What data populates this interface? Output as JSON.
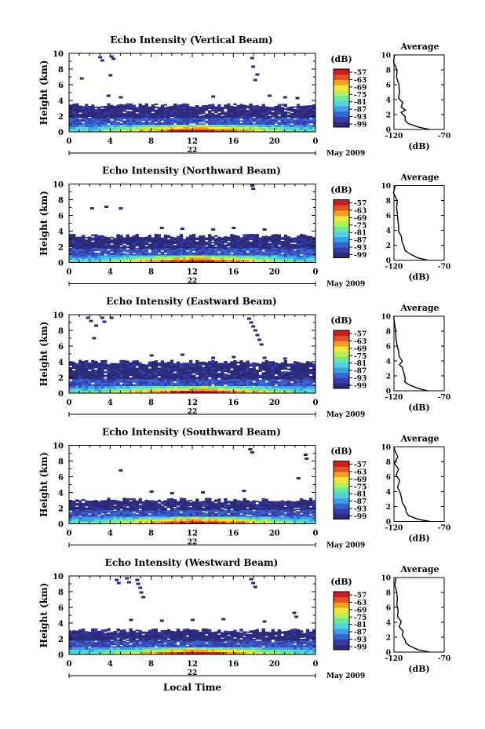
{
  "chart_data": {
    "type": "heatmap",
    "x_label": "Local Time",
    "y_label": "Height (km)",
    "x_ticks": [
      "0",
      "4",
      "8",
      "12",
      "16",
      "20",
      "0"
    ],
    "y_ticks": [
      "0",
      "2",
      "4",
      "6",
      "8",
      "10"
    ],
    "xlim": [
      0,
      24
    ],
    "ylim": [
      0,
      10
    ],
    "day_label": "22",
    "month_label": "May 2009",
    "colorbar": {
      "title": "(dB)",
      "ticks": [
        "-57",
        "-63",
        "-69",
        "-75",
        "-81",
        "-87",
        "-93",
        "-99"
      ]
    },
    "colors": [
      "#2b2b7a",
      "#3a3aa8",
      "#3565cf",
      "#3aa0e8",
      "#55d0e0",
      "#6ee89a",
      "#b8ef58",
      "#f2e63a",
      "#f5a023",
      "#e4502a",
      "#c81e1e"
    ],
    "average": {
      "title": "Average",
      "xlabel": "(dB)",
      "xlim": [
        -120,
        -70
      ],
      "x_ticks": [
        "-120",
        "-70"
      ],
      "y_ticks": [
        "0",
        "2",
        "4",
        "6",
        "8",
        "10"
      ]
    },
    "panels": [
      {
        "title": "Echo Intensity (Vertical Beam)",
        "layer_top_km": 3.4,
        "sparse": [
          [
            3,
            9.5
          ],
          [
            3.2,
            9.1
          ],
          [
            4.1,
            9.6
          ],
          [
            4.3,
            9.3
          ],
          [
            4.0,
            7.2
          ],
          [
            1.2,
            6.8
          ],
          [
            17.8,
            9.4
          ],
          [
            17.9,
            8.3
          ],
          [
            18.1,
            6.6
          ],
          [
            18.3,
            7.3
          ],
          [
            3.8,
            4.6
          ],
          [
            5,
            4.4
          ],
          [
            14,
            4.5
          ],
          [
            19.5,
            4.6
          ],
          [
            21,
            4.4
          ],
          [
            22.2,
            4.3
          ]
        ],
        "avg_profile": [
          [
            -85,
            0
          ],
          [
            -95,
            0.3
          ],
          [
            -105,
            0.8
          ],
          [
            -108,
            1.2
          ],
          [
            -110,
            1.7
          ],
          [
            -112,
            2.3
          ],
          [
            -110,
            2.6
          ],
          [
            -113,
            3.0
          ],
          [
            -112,
            3.6
          ],
          [
            -114,
            4.2
          ],
          [
            -115,
            5.0
          ],
          [
            -116,
            6.0
          ],
          [
            -117,
            7.0
          ],
          [
            -118,
            8.0
          ],
          [
            -119,
            9.0
          ],
          [
            -119,
            10
          ]
        ]
      },
      {
        "title": "Echo Intensity (Northward Beam)",
        "layer_top_km": 3.4,
        "sparse": [
          [
            2.2,
            6.9
          ],
          [
            3.6,
            7.1
          ],
          [
            5,
            6.9
          ],
          [
            17.8,
            9.8
          ],
          [
            17.9,
            9.4
          ],
          [
            9,
            4.4
          ],
          [
            11,
            4.3
          ],
          [
            14,
            4.2
          ],
          [
            16,
            4.4
          ],
          [
            19,
            4.2
          ]
        ],
        "avg_profile": [
          [
            -85,
            0
          ],
          [
            -95,
            0.3
          ],
          [
            -105,
            0.8
          ],
          [
            -108,
            1.3
          ],
          [
            -110,
            1.9
          ],
          [
            -112,
            2.5
          ],
          [
            -112,
            3.2
          ],
          [
            -114,
            3.8
          ],
          [
            -114,
            4.6
          ],
          [
            -116,
            5.5
          ],
          [
            -116,
            6.3
          ],
          [
            -117,
            7.0
          ],
          [
            -118,
            8.0
          ],
          [
            -119,
            9.0
          ],
          [
            -119,
            10
          ]
        ]
      },
      {
        "title": "Echo Intensity (Eastward Beam)",
        "layer_top_km": 4.0,
        "sparse": [
          [
            1.8,
            9.6
          ],
          [
            2.1,
            9.2
          ],
          [
            2.6,
            8.6
          ],
          [
            2.4,
            7.0
          ],
          [
            3.2,
            9.6
          ],
          [
            3.4,
            9.1
          ],
          [
            4.1,
            9.6
          ],
          [
            17.5,
            9.5
          ],
          [
            17.7,
            9.0
          ],
          [
            17.9,
            8.5
          ],
          [
            18.1,
            8.0
          ],
          [
            18.3,
            7.4
          ],
          [
            18.5,
            6.8
          ],
          [
            18.7,
            6.2
          ],
          [
            8,
            4.8
          ],
          [
            11,
            4.9
          ],
          [
            14,
            4.5
          ],
          [
            16,
            4.6
          ],
          [
            19,
            4.5
          ],
          [
            21,
            4.4
          ]
        ],
        "avg_profile": [
          [
            -85,
            0
          ],
          [
            -95,
            0.3
          ],
          [
            -105,
            0.8
          ],
          [
            -108,
            1.2
          ],
          [
            -110,
            1.6
          ],
          [
            -111,
            2.1
          ],
          [
            -112,
            2.6
          ],
          [
            -111,
            3.1
          ],
          [
            -114,
            3.5
          ],
          [
            -113,
            4.0
          ],
          [
            -115,
            4.6
          ],
          [
            -116,
            5.3
          ],
          [
            -116,
            6.0
          ],
          [
            -117,
            7.0
          ],
          [
            -118,
            8.0
          ],
          [
            -119,
            9.0
          ],
          [
            -119,
            10
          ]
        ]
      },
      {
        "title": "Echo Intensity (Southward Beam)",
        "layer_top_km": 3.1,
        "sparse": [
          [
            5,
            6.8
          ],
          [
            17.6,
            9.5
          ],
          [
            17.8,
            9.1
          ],
          [
            23.0,
            8.8
          ],
          [
            23.1,
            8.3
          ],
          [
            22.3,
            5.8
          ],
          [
            8,
            4.1
          ],
          [
            10,
            3.9
          ],
          [
            13,
            4.0
          ],
          [
            17,
            4.2
          ]
        ],
        "avg_profile": [
          [
            -85,
            0
          ],
          [
            -95,
            0.3
          ],
          [
            -105,
            0.8
          ],
          [
            -108,
            1.3
          ],
          [
            -110,
            1.9
          ],
          [
            -112,
            2.5
          ],
          [
            -112,
            3.2
          ],
          [
            -113,
            3.9
          ],
          [
            -115,
            4.6
          ],
          [
            -114,
            5.5
          ],
          [
            -117,
            6.2
          ],
          [
            -115,
            7.0
          ],
          [
            -118,
            7.8
          ],
          [
            -116,
            8.7
          ],
          [
            -118,
            9.3
          ],
          [
            -119,
            10
          ]
        ]
      },
      {
        "title": "Echo Intensity (Westward Beam)",
        "layer_top_km": 3.1,
        "sparse": [
          [
            4.6,
            9.5
          ],
          [
            4.8,
            9.1
          ],
          [
            5.6,
            9.7
          ],
          [
            5.8,
            9.2
          ],
          [
            6.6,
            9.5
          ],
          [
            6.7,
            9.0
          ],
          [
            6.9,
            8.5
          ],
          [
            7.0,
            7.9
          ],
          [
            7.2,
            7.3
          ],
          [
            17.7,
            9.6
          ],
          [
            17.9,
            9.1
          ],
          [
            18.1,
            8.6
          ],
          [
            21.9,
            5.3
          ],
          [
            22.1,
            4.8
          ],
          [
            6,
            4.4
          ],
          [
            9,
            4.3
          ],
          [
            12,
            4.4
          ],
          [
            15,
            4.5
          ],
          [
            19,
            4.2
          ]
        ],
        "avg_profile": [
          [
            -85,
            0
          ],
          [
            -95,
            0.3
          ],
          [
            -105,
            0.8
          ],
          [
            -108,
            1.2
          ],
          [
            -110,
            1.7
          ],
          [
            -112,
            2.2
          ],
          [
            -112,
            2.8
          ],
          [
            -114,
            3.4
          ],
          [
            -113,
            4.1
          ],
          [
            -115,
            4.8
          ],
          [
            -115,
            5.6
          ],
          [
            -116,
            6.4
          ],
          [
            -117,
            7.2
          ],
          [
            -118,
            8.0
          ],
          [
            -119,
            9.0
          ],
          [
            -119,
            10
          ]
        ]
      }
    ]
  }
}
